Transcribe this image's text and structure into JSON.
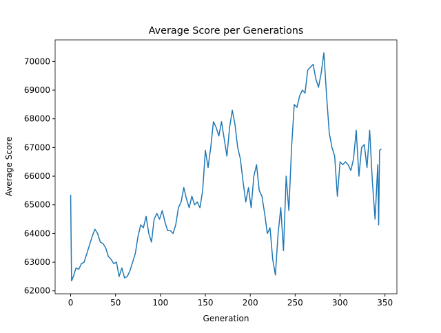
{
  "chart_data": {
    "type": "line",
    "title": "Average Score per Generations",
    "x_label": "Generation",
    "y_label": "Average Score",
    "x": [
      0,
      1,
      3,
      6,
      9,
      12,
      15,
      18,
      21,
      24,
      27,
      30,
      33,
      36,
      39,
      42,
      45,
      48,
      51,
      54,
      57,
      60,
      63,
      66,
      69,
      72,
      75,
      78,
      81,
      84,
      87,
      90,
      93,
      96,
      99,
      102,
      105,
      108,
      111,
      114,
      117,
      120,
      123,
      126,
      129,
      132,
      135,
      138,
      141,
      144,
      147,
      150,
      153,
      156,
      159,
      162,
      165,
      168,
      171,
      174,
      177,
      180,
      183,
      186,
      189,
      192,
      195,
      198,
      201,
      204,
      207,
      210,
      213,
      216,
      219,
      222,
      225,
      228,
      231,
      234,
      237,
      240,
      243,
      246,
      249,
      252,
      255,
      258,
      261,
      264,
      267,
      270,
      273,
      276,
      279,
      282,
      285,
      288,
      291,
      294,
      297,
      300,
      303,
      306,
      309,
      312,
      315,
      318,
      321,
      324,
      327,
      330,
      333,
      336,
      339,
      342,
      343,
      344,
      346
    ],
    "series": [
      {
        "name": "Average Score",
        "color": "#1f77b4",
        "values": [
          65350,
          62350,
          62500,
          62800,
          62750,
          62950,
          63000,
          63300,
          63600,
          63900,
          64150,
          64000,
          63700,
          63650,
          63500,
          63200,
          63100,
          62950,
          63000,
          62500,
          62800,
          62450,
          62500,
          62700,
          63000,
          63300,
          63900,
          64300,
          64200,
          64600,
          64000,
          63700,
          64500,
          64700,
          64500,
          64800,
          64400,
          64100,
          64100,
          64000,
          64300,
          64900,
          65100,
          65600,
          65200,
          64900,
          65300,
          65000,
          65100,
          64900,
          65500,
          66900,
          66300,
          67000,
          67900,
          67700,
          67400,
          67900,
          67300,
          66700,
          67700,
          68300,
          67800,
          67000,
          66600,
          65800,
          65100,
          65600,
          64900,
          66000,
          66400,
          65500,
          65300,
          64700,
          64000,
          64200,
          63100,
          62550,
          64000,
          64900,
          63400,
          66000,
          64800,
          67000,
          68500,
          68400,
          68800,
          69000,
          68900,
          69700,
          69800,
          69900,
          69400,
          69100,
          69600,
          70300,
          68800,
          67500,
          67000,
          66700,
          65300,
          66500,
          66400,
          66500,
          66400,
          66200,
          66600,
          67600,
          66000,
          67000,
          67100,
          66300,
          67600,
          65800,
          64500,
          66400,
          64300,
          66900,
          66950
        ]
      }
    ],
    "xlim": [
      -17.3,
      363.3
    ],
    "ylim": [
      61898,
      70752
    ],
    "xticks": [
      0,
      50,
      100,
      150,
      200,
      250,
      300,
      350
    ],
    "yticks": [
      62000,
      63000,
      64000,
      65000,
      66000,
      67000,
      68000,
      69000,
      70000
    ]
  }
}
